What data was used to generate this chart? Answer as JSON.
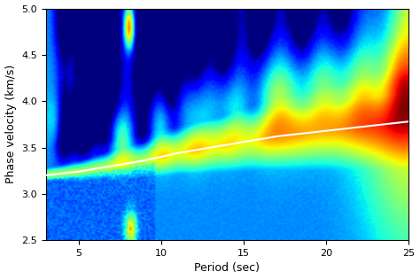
{
  "xlabel": "Period (sec)",
  "ylabel": "Phase velocity (km/s)",
  "xlim": [
    3,
    25
  ],
  "ylim": [
    2.5,
    5.0
  ],
  "xticks": [
    5,
    10,
    15,
    20,
    25
  ],
  "yticks": [
    2.5,
    3.0,
    3.5,
    4.0,
    4.5,
    5.0
  ],
  "colormap": "jet",
  "white_line_periods": [
    3,
    4,
    5,
    6,
    7,
    8,
    9,
    10,
    11,
    12,
    13,
    14,
    15,
    16,
    17,
    18,
    19,
    20,
    21,
    22,
    23,
    24,
    25
  ],
  "white_line_velocities": [
    3.2,
    3.22,
    3.24,
    3.27,
    3.3,
    3.33,
    3.36,
    3.4,
    3.44,
    3.47,
    3.5,
    3.53,
    3.56,
    3.59,
    3.62,
    3.64,
    3.66,
    3.68,
    3.7,
    3.72,
    3.74,
    3.76,
    3.78
  ],
  "figsize": [
    4.74,
    3.15
  ],
  "dpi": 100
}
